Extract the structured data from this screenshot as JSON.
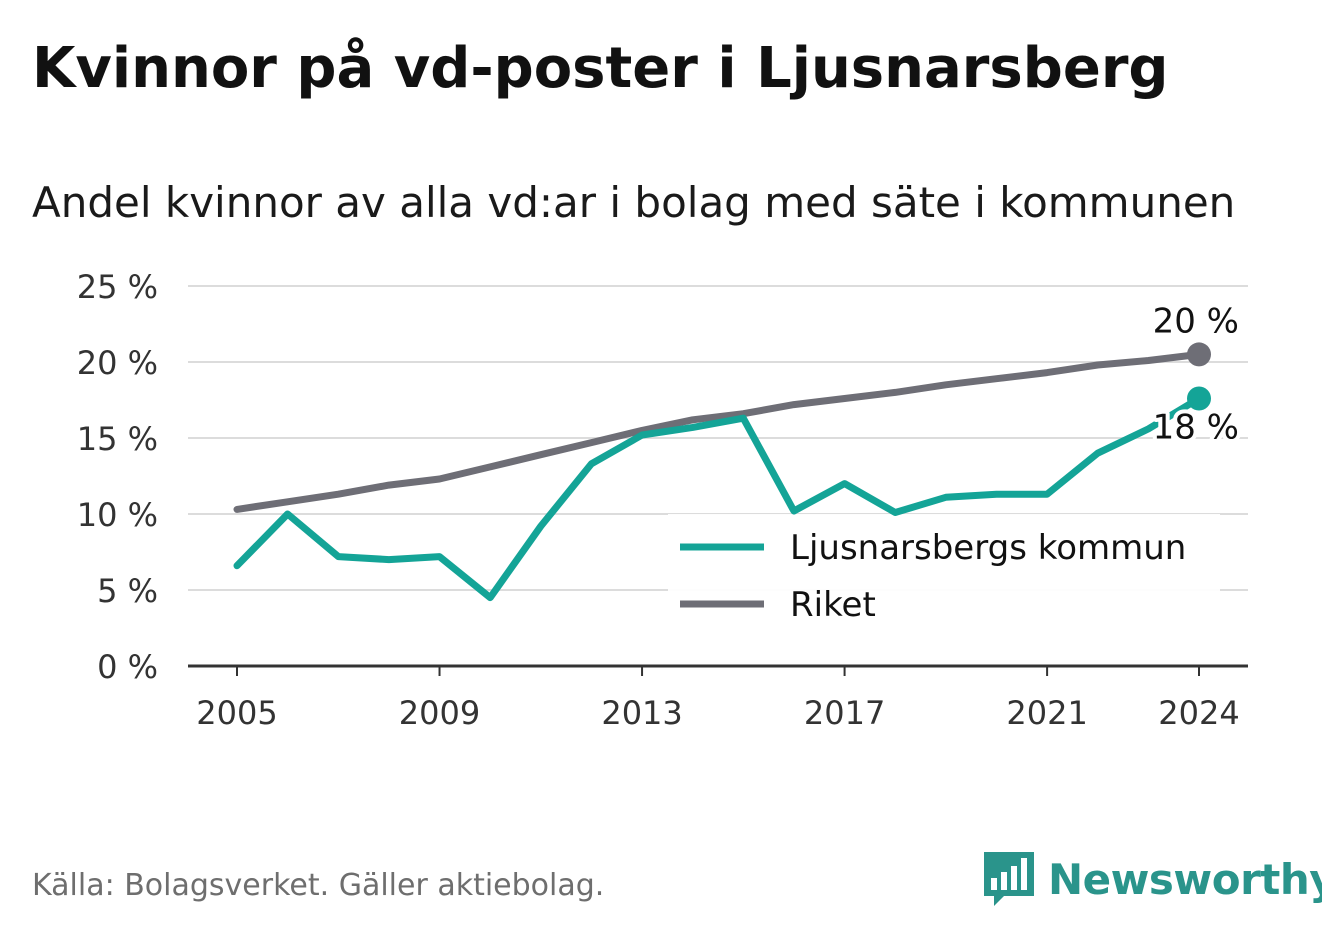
{
  "title": "Kvinnor på vd-poster i Ljusnarsberg",
  "subtitle": "Andel kvinnor av alla vd:ar i bolag med säte i kommunen",
  "source": "Källa: Bolagsverket. Gäller aktiebolag.",
  "brand": {
    "name": "Newsworthy",
    "icon": "newsworthy-bar-chart-icon",
    "color": "#2a948b"
  },
  "chart_data": {
    "type": "line",
    "ylim": [
      0,
      25
    ],
    "yticks": [
      0,
      5,
      10,
      15,
      20,
      25
    ],
    "ytick_labels": [
      "0 %",
      "5 %",
      "10 %",
      "15 %",
      "20 %",
      "25 %"
    ],
    "xlim": [
      2005,
      2024
    ],
    "xticks": [
      2005,
      2009,
      2013,
      2017,
      2021,
      2024
    ],
    "xtick_labels": [
      "2005",
      "2009",
      "2013",
      "2017",
      "2021",
      "2024"
    ],
    "grid": true,
    "legend_position": "bottom-right",
    "series": [
      {
        "name": "Ljusnarsbergs kommun",
        "color": "#14a497",
        "x": [
          2005,
          2006,
          2007,
          2008,
          2009,
          2010,
          2011,
          2012,
          2013,
          2014,
          2015,
          2016,
          2017,
          2018,
          2019,
          2020,
          2021,
          2022,
          2023,
          2024
        ],
        "values": [
          6.6,
          10.0,
          7.2,
          7.0,
          7.2,
          4.5,
          9.2,
          13.3,
          15.2,
          15.7,
          16.3,
          10.2,
          12.0,
          10.1,
          11.1,
          11.3,
          11.3,
          14.0,
          15.6,
          17.6
        ],
        "end_label": "18 %"
      },
      {
        "name": "Riket",
        "color": "#6e6e76",
        "x": [
          2005,
          2006,
          2007,
          2008,
          2009,
          2010,
          2011,
          2012,
          2013,
          2014,
          2015,
          2016,
          2017,
          2018,
          2019,
          2020,
          2021,
          2022,
          2023,
          2024
        ],
        "values": [
          10.3,
          10.8,
          11.3,
          11.9,
          12.3,
          13.1,
          13.9,
          14.7,
          15.5,
          16.2,
          16.6,
          17.2,
          17.6,
          18.0,
          18.5,
          18.9,
          19.3,
          19.8,
          20.1,
          20.5
        ],
        "end_label": "20 %"
      }
    ]
  }
}
